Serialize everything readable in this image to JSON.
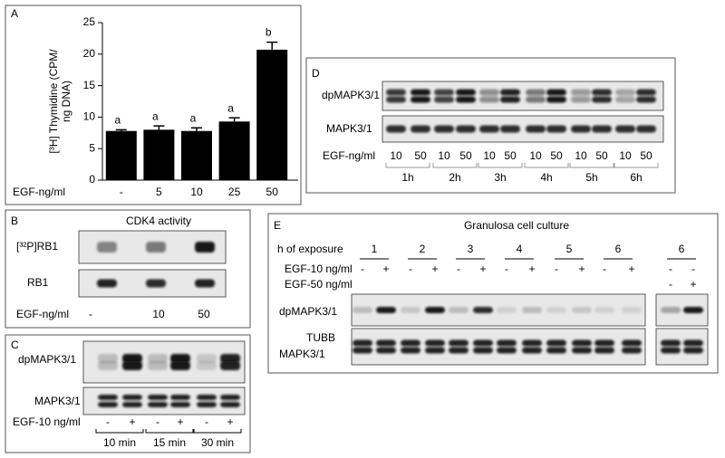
{
  "chart_data": {
    "type": "bar",
    "panel_label": "A",
    "ylabel": [
      "[³H] Thymidine (CPM/",
      "ng DNA)"
    ],
    "xlabel": "EGF-ng/ml",
    "categories": [
      "-",
      "5",
      "10",
      "25",
      "50"
    ],
    "values": [
      7.8,
      8.0,
      7.8,
      9.3,
      20.7
    ],
    "errors": [
      0.2,
      0.6,
      0.5,
      0.6,
      1.2
    ],
    "annotations": [
      "a",
      "a",
      "a",
      "a",
      "b"
    ],
    "ylim": [
      0,
      25
    ],
    "yticks": [
      0,
      5,
      10,
      15,
      20,
      25
    ],
    "color": "#000000"
  },
  "panel_b": {
    "label": "B",
    "title": "CDK4 activity",
    "rows": [
      "[³²P]RB1",
      "RB1"
    ],
    "treatment_label": "EGF-ng/ml",
    "doses": [
      "-",
      "10",
      "50"
    ]
  },
  "panel_c": {
    "label": "C",
    "rows": [
      "dpMAPK3/1",
      "MAPK3/1"
    ],
    "treatment_label": "EGF-10 ng/ml",
    "signs": [
      "-",
      "+",
      "-",
      "+",
      "-",
      "+"
    ],
    "times": [
      "10 min",
      "15 min",
      "30 min"
    ]
  },
  "panel_d": {
    "label": "D",
    "rows": [
      "dpMAPK3/1",
      "MAPK3/1"
    ],
    "treatment_label": "EGF-ng/ml",
    "doses": [
      "10",
      "50",
      "10",
      "50",
      "10",
      "50",
      "10",
      "50",
      "10",
      "50",
      "10",
      "50"
    ],
    "times": [
      "1h",
      "2h",
      "3h",
      "4h",
      "5h",
      "6h"
    ]
  },
  "panel_e": {
    "label": "E",
    "title": "Granulosa cell culture",
    "exposure_label": "h of exposure",
    "hours": [
      "1",
      "2",
      "3",
      "4",
      "5",
      "6",
      "6"
    ],
    "egf10_label": "EGF-10 ng/ml",
    "egf10": [
      "-",
      "+",
      "-",
      "+",
      "-",
      "+",
      "-",
      "+",
      "-",
      "+",
      "-",
      "+",
      "-",
      "-"
    ],
    "egf50_label": "EGF-50 ng/ml",
    "egf50": [
      "-",
      "+"
    ],
    "rows": [
      "dpMAPK3/1",
      "TUBB",
      "MAPK3/1"
    ]
  }
}
